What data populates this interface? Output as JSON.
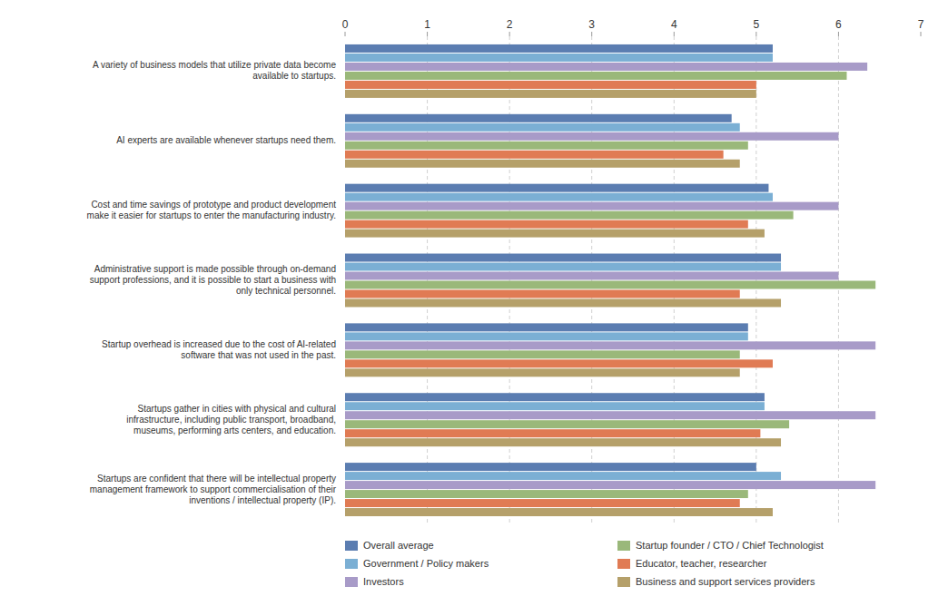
{
  "chart_data": {
    "type": "bar",
    "orientation": "horizontal",
    "categories": [
      "A variety of business models that utilize private data become\navailable to startups.",
      "AI experts are available whenever startups need them.",
      "Cost and time savings of prototype and product development\nmake it easier for startups to enter the manufacturing industry.",
      "Administrative support is made possible through on-demand\nsupport professions, and it is possible to start a business with\nonly technical personnel.",
      "Startup overhead is increased due to the cost of AI-related\nsoftware that was not used in the past.",
      "Startups gather in cities with physical and cultural\ninfrastructure, including public transport, broadband,\nmuseums, performing arts centers, and education.",
      "Startups are confident that there will be intellectual property\nmanagement framework to support commercialisation of their\ninventions / intellectual property (IP)."
    ],
    "series": [
      {
        "name": "Overall average",
        "color": "#5b7db1",
        "values": [
          5.2,
          4.7,
          5.15,
          5.3,
          4.9,
          5.1,
          5.0
        ]
      },
      {
        "name": "Government / Policy makers",
        "color": "#7bafd4",
        "values": [
          5.2,
          4.8,
          5.2,
          5.3,
          4.9,
          5.1,
          5.3
        ]
      },
      {
        "name": "Investors",
        "color": "#a89bc8",
        "values": [
          6.35,
          6.0,
          6.0,
          6.0,
          6.45,
          6.45,
          6.45
        ]
      },
      {
        "name": "Startup founder / CTO / Chief Technologist",
        "color": "#9ab87a",
        "values": [
          6.1,
          4.9,
          5.45,
          6.45,
          4.8,
          5.4,
          4.9
        ]
      },
      {
        "name": "Educator, teacher, researcher",
        "color": "#e07b54",
        "values": [
          5.0,
          4.6,
          4.9,
          4.8,
          5.2,
          5.05,
          4.8
        ]
      },
      {
        "name": "Business and support services providers",
        "color": "#b5a06a",
        "values": [
          5.0,
          4.8,
          5.1,
          5.3,
          4.8,
          5.3,
          5.2
        ]
      }
    ],
    "xlim": [
      0,
      7
    ],
    "xticks": [
      0,
      1,
      2,
      3,
      4,
      5,
      6,
      7
    ],
    "grid": true,
    "legend": "bottom"
  }
}
